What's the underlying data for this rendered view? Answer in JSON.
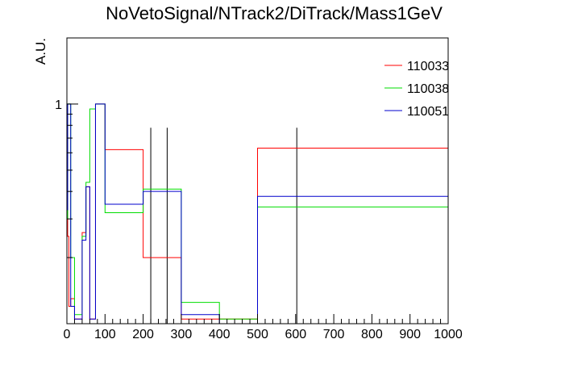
{
  "chart_data": {
    "type": "histogram",
    "title": "NoVetoSignal/NTrack2/DiTrack/Mass1GeV",
    "xlabel": "",
    "ylabel": "A.U.",
    "xlim": [
      0,
      1000
    ],
    "ylim_scale": "log",
    "ylim": [
      0.1,
      2.0
    ],
    "yticks": [
      {
        "value": 1,
        "label": "1"
      }
    ],
    "xticks": [
      {
        "value": 0,
        "label": "0"
      },
      {
        "value": 100,
        "label": "100"
      },
      {
        "value": 200,
        "label": "200"
      },
      {
        "value": 300,
        "label": "300"
      },
      {
        "value": 400,
        "label": "400"
      },
      {
        "value": 500,
        "label": "500"
      },
      {
        "value": 600,
        "label": "600"
      },
      {
        "value": 700,
        "label": "700"
      },
      {
        "value": 800,
        "label": "800"
      },
      {
        "value": 900,
        "label": "900"
      },
      {
        "value": 1000,
        "label": "1000"
      }
    ],
    "grid": false,
    "legend_position": "top-right",
    "vertical_lines": [
      {
        "x": 220,
        "y_top": 0.78
      },
      {
        "x": 263,
        "y_top": 0.78
      },
      {
        "x": 603,
        "y_top": 0.78
      }
    ],
    "series": [
      {
        "name": "110033",
        "color": "#ff0000",
        "bins": [
          {
            "x0": 0,
            "x1": 2,
            "y": 0.35
          },
          {
            "x0": 2,
            "x1": 5,
            "y": 0.25
          },
          {
            "x0": 5,
            "x1": 10,
            "y": 0.12
          },
          {
            "x0": 10,
            "x1": 20,
            "y": 0.13
          },
          {
            "x0": 20,
            "x1": 40,
            "y": 0.105
          },
          {
            "x0": 40,
            "x1": 50,
            "y": 0.26
          },
          {
            "x0": 50,
            "x1": 60,
            "y": 0.42
          },
          {
            "x0": 60,
            "x1": 75,
            "y": 0.105
          },
          {
            "x0": 75,
            "x1": 100,
            "y": 1.0
          },
          {
            "x0": 100,
            "x1": 200,
            "y": 0.62
          },
          {
            "x0": 200,
            "x1": 300,
            "y": 0.2
          },
          {
            "x0": 300,
            "x1": 400,
            "y": 0.105
          },
          {
            "x0": 400,
            "x1": 500,
            "y": 0.105
          },
          {
            "x0": 500,
            "x1": 1000,
            "y": 0.63
          }
        ]
      },
      {
        "name": "110038",
        "color": "#00dd00",
        "bins": [
          {
            "x0": 0,
            "x1": 2,
            "y": 0.3
          },
          {
            "x0": 2,
            "x1": 10,
            "y": 1.0
          },
          {
            "x0": 10,
            "x1": 20,
            "y": 0.2
          },
          {
            "x0": 20,
            "x1": 40,
            "y": 0.11
          },
          {
            "x0": 40,
            "x1": 50,
            "y": 0.25
          },
          {
            "x0": 50,
            "x1": 60,
            "y": 0.44
          },
          {
            "x0": 60,
            "x1": 75,
            "y": 0.95
          },
          {
            "x0": 75,
            "x1": 100,
            "y": 1.0
          },
          {
            "x0": 100,
            "x1": 200,
            "y": 0.32
          },
          {
            "x0": 200,
            "x1": 300,
            "y": 0.41
          },
          {
            "x0": 300,
            "x1": 400,
            "y": 0.125
          },
          {
            "x0": 400,
            "x1": 500,
            "y": 0.105
          },
          {
            "x0": 500,
            "x1": 1000,
            "y": 0.34
          }
        ]
      },
      {
        "name": "110051",
        "color": "#0000cc",
        "bins": [
          {
            "x0": 0,
            "x1": 2,
            "y": 0.33
          },
          {
            "x0": 2,
            "x1": 10,
            "y": 1.0
          },
          {
            "x0": 10,
            "x1": 20,
            "y": 0.12
          },
          {
            "x0": 20,
            "x1": 40,
            "y": 0.105
          },
          {
            "x0": 40,
            "x1": 50,
            "y": 0.24
          },
          {
            "x0": 50,
            "x1": 60,
            "y": 0.42
          },
          {
            "x0": 60,
            "x1": 75,
            "y": 0.105
          },
          {
            "x0": 75,
            "x1": 100,
            "y": 1.0
          },
          {
            "x0": 100,
            "x1": 200,
            "y": 0.35
          },
          {
            "x0": 200,
            "x1": 300,
            "y": 0.4
          },
          {
            "x0": 300,
            "x1": 400,
            "y": 0.11
          },
          {
            "x0": 400,
            "x1": 500,
            "y": 0.1
          },
          {
            "x0": 500,
            "x1": 1000,
            "y": 0.38
          }
        ]
      }
    ]
  }
}
